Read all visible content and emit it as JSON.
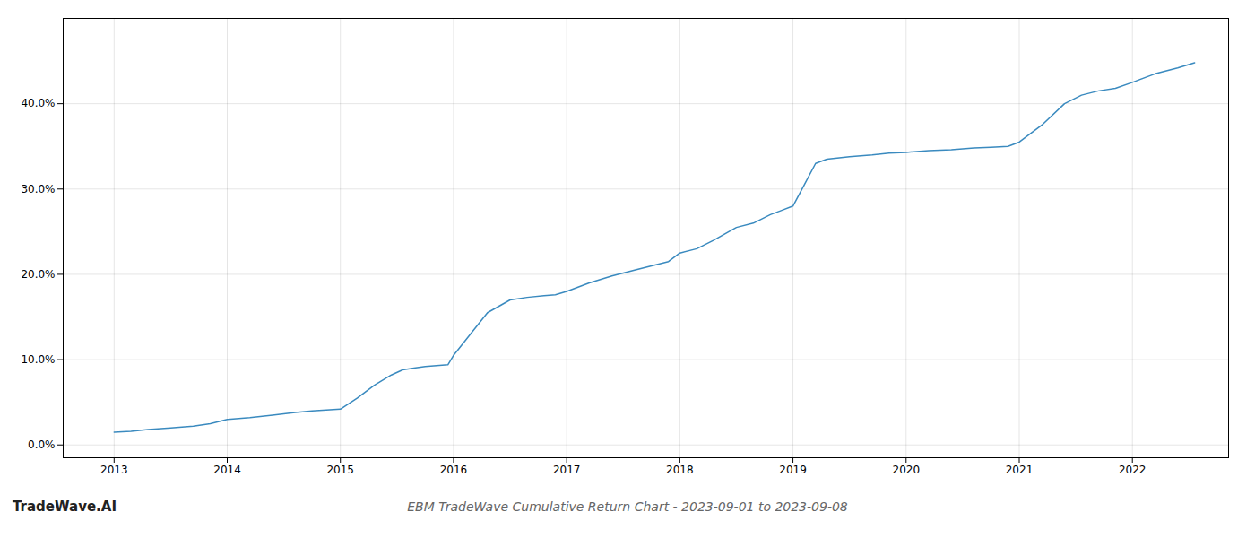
{
  "chart_data": {
    "type": "line",
    "title": "EBM TradeWave Cumulative Return Chart - 2023-09-01 to 2023-09-08",
    "annotations": [
      "TradeWave.AI"
    ],
    "color": "#3a8abf",
    "x": [
      2013.0,
      2013.15,
      2013.3,
      2013.5,
      2013.7,
      2013.85,
      2014.0,
      2014.2,
      2014.4,
      2014.6,
      2014.75,
      2015.0,
      2015.15,
      2015.3,
      2015.45,
      2015.55,
      2015.65,
      2015.75,
      2015.85,
      2015.95,
      2016.0,
      2016.15,
      2016.3,
      2016.5,
      2016.65,
      2016.8,
      2016.9,
      2017.0,
      2017.2,
      2017.4,
      2017.6,
      2017.75,
      2017.9,
      2018.0,
      2018.15,
      2018.3,
      2018.5,
      2018.65,
      2018.8,
      2018.9,
      2019.0,
      2019.1,
      2019.2,
      2019.3,
      2019.5,
      2019.7,
      2019.85,
      2020.0,
      2020.2,
      2020.4,
      2020.6,
      2020.75,
      2020.9,
      2021.0,
      2021.2,
      2021.4,
      2021.55,
      2021.7,
      2021.85,
      2022.0,
      2022.2,
      2022.4,
      2022.55
    ],
    "values": [
      1.5,
      1.6,
      1.8,
      2.0,
      2.2,
      2.5,
      3.0,
      3.2,
      3.5,
      3.8,
      4.0,
      4.2,
      5.5,
      7.0,
      8.2,
      8.8,
      9.0,
      9.2,
      9.3,
      9.4,
      10.5,
      13.0,
      15.5,
      17.0,
      17.3,
      17.5,
      17.6,
      18.0,
      19.0,
      19.8,
      20.5,
      21.0,
      21.5,
      22.5,
      23.0,
      24.0,
      25.5,
      26.0,
      27.0,
      27.5,
      28.0,
      30.5,
      33.0,
      33.5,
      33.8,
      34.0,
      34.2,
      34.3,
      34.5,
      34.6,
      34.8,
      34.9,
      35.0,
      35.5,
      37.5,
      40.0,
      41.0,
      41.5,
      41.8,
      42.5,
      43.5,
      44.2,
      44.8
    ],
    "xlim": [
      2012.55,
      2022.85
    ],
    "ylim": [
      -1.5,
      50
    ],
    "xticks": [
      2013,
      2014,
      2015,
      2016,
      2017,
      2018,
      2019,
      2020,
      2021,
      2022
    ],
    "yticks": [
      {
        "value": 0.0,
        "label": "0.0%"
      },
      {
        "value": 10.0,
        "label": "10.0%"
      },
      {
        "value": 20.0,
        "label": "20.0%"
      },
      {
        "value": 30.0,
        "label": "30.0%"
      },
      {
        "value": 40.0,
        "label": "40.0%"
      }
    ],
    "grid": true
  }
}
